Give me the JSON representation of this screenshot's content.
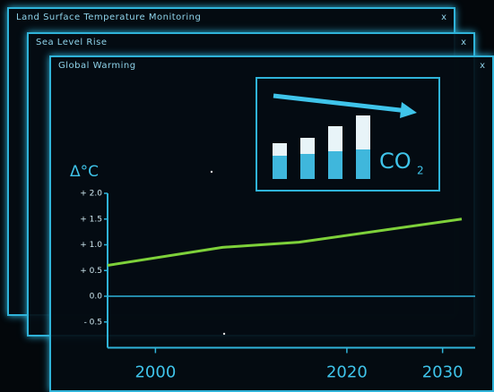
{
  "windows": [
    {
      "title": "Land Surface Temperature Monitoring",
      "close": "x"
    },
    {
      "title": "Sea Level Rise",
      "close": "x"
    },
    {
      "title": "Global Warming",
      "close": "x"
    }
  ],
  "inset": {
    "label": "CO",
    "subscript": "2"
  },
  "chart_data": {
    "type": "line",
    "y_label": "Δ°C",
    "x": [
      1995,
      2007,
      2015,
      2032
    ],
    "values": [
      0.6,
      0.95,
      1.05,
      1.5
    ],
    "color": "#7ed13a",
    "xlim": [
      1995,
      2032
    ],
    "xticks": [
      2000,
      2020,
      2030
    ],
    "ylim": [
      -1.0,
      2.0
    ],
    "yticks": [
      {
        "value": 2.0,
        "label": "+ 2.0"
      },
      {
        "value": 1.5,
        "label": "+ 1.5"
      },
      {
        "value": 1.0,
        "label": "+ 1.0"
      },
      {
        "value": 0.5,
        "label": "+ 0.5"
      },
      {
        "value": 0.0,
        "label": "0.0"
      },
      {
        "value": -0.5,
        "label": "- 0.5"
      }
    ],
    "zero_line": true
  }
}
